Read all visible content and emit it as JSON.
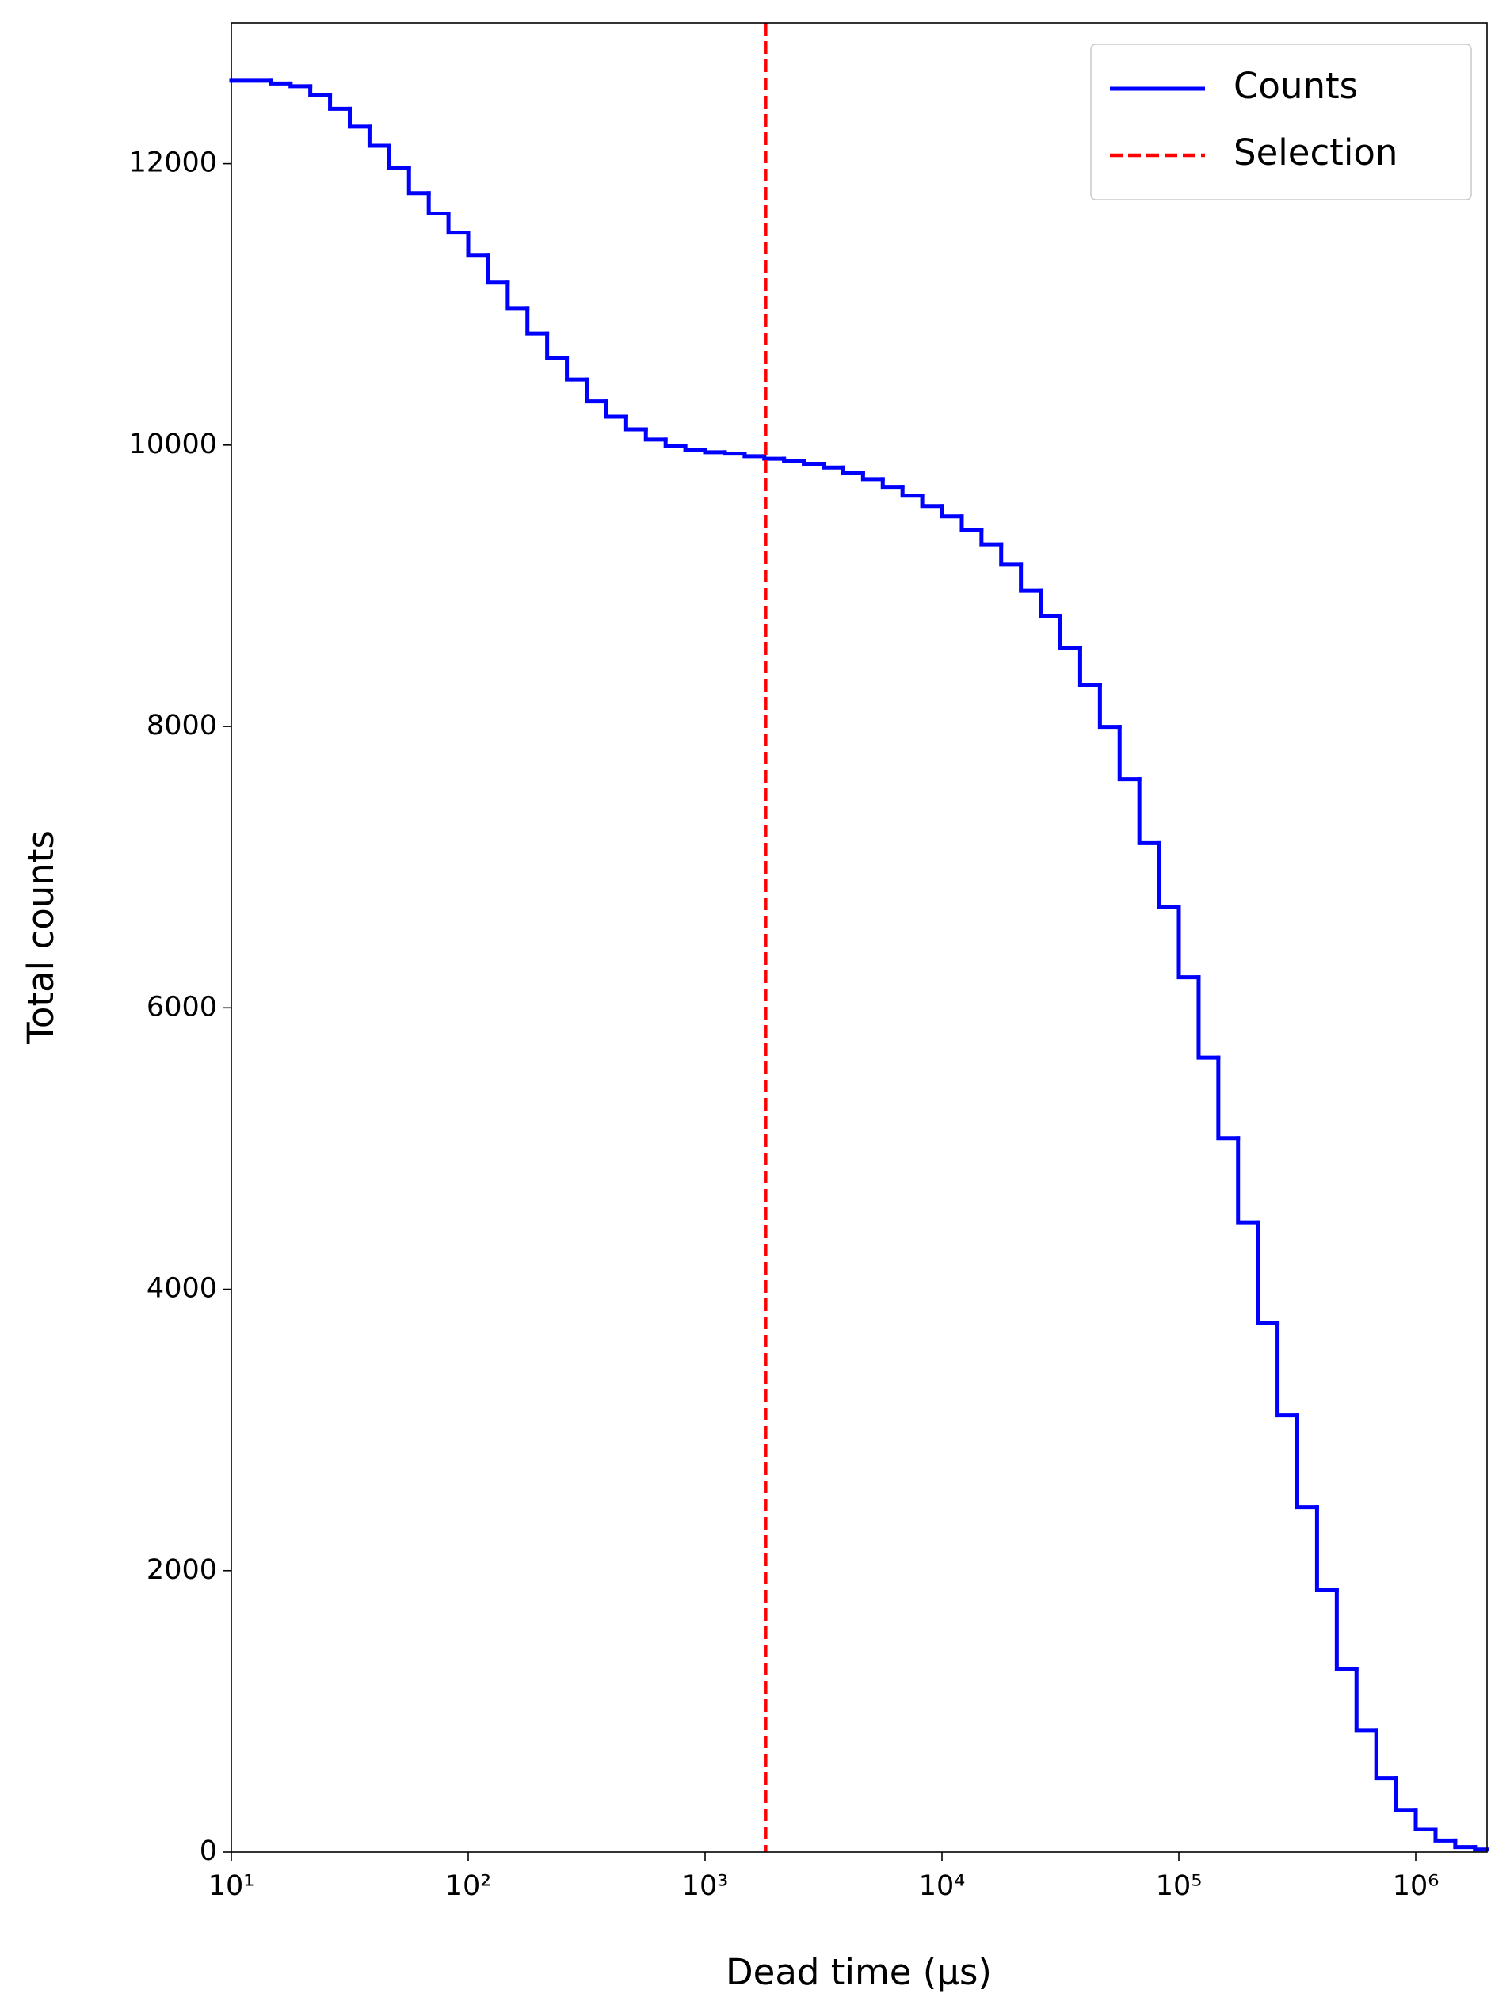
{
  "chart_data": {
    "type": "line",
    "step": "post",
    "xlabel": "Dead time (μs)",
    "ylabel": "Total counts",
    "xscale": "log",
    "xlim": [
      10,
      2000000
    ],
    "ylim": [
      0,
      13000
    ],
    "xticks": [
      {
        "value": 10,
        "label": "10¹"
      },
      {
        "value": 100,
        "label": "10²"
      },
      {
        "value": 1000,
        "label": "10³"
      },
      {
        "value": 10000,
        "label": "10⁴"
      },
      {
        "value": 100000,
        "label": "10⁵"
      },
      {
        "value": 1000000,
        "label": "10⁶"
      }
    ],
    "yticks": [
      0,
      2000,
      4000,
      6000,
      8000,
      10000,
      12000
    ],
    "grid": false,
    "legend": "upper right",
    "x": [
      10,
      14.68,
      17.78,
      21.54,
      26.1,
      31.62,
      38.31,
      46.42,
      56.23,
      68.13,
      82.54,
      100,
      121.2,
      146.8,
      177.8,
      215.4,
      261,
      316.2,
      383.1,
      464.2,
      562.3,
      681.3,
      825.4,
      1000,
      1212,
      1468,
      1778,
      2154,
      2610,
      3162,
      3831,
      4642,
      5623,
      6813,
      8254,
      10000,
      12120,
      14680,
      17780,
      21540,
      26100,
      31620,
      38310,
      46420,
      56230,
      68130,
      82540,
      100000,
      121200,
      146800,
      177800,
      215400,
      261000,
      316200,
      383100,
      464200,
      562300,
      681300,
      825400,
      1000000,
      1212000,
      1468000,
      1778000
    ],
    "series": [
      {
        "name": "Counts",
        "color": "#0000ff",
        "values": [
          12590,
          12570,
          12550,
          12490,
          12390,
          12263,
          12127,
          11972,
          11791,
          11646,
          11510,
          11346,
          11155,
          10974,
          10792,
          10620,
          10466,
          10311,
          10202,
          10112,
          10039,
          9994,
          9967,
          9949,
          9939,
          9921,
          9903,
          9885,
          9867,
          9840,
          9803,
          9758,
          9703,
          9640,
          9567,
          9494,
          9395,
          9295,
          9150,
          8968,
          8786,
          8559,
          8296,
          7997,
          7625,
          7171,
          6717,
          6218,
          5646,
          5074,
          4475,
          3758,
          3104,
          2451,
          1861,
          1298,
          862,
          526,
          300,
          163,
          82,
          36,
          18
        ]
      }
    ],
    "vlines": [
      {
        "name": "Selection",
        "x": 1800,
        "color": "#ff0000"
      }
    ]
  }
}
